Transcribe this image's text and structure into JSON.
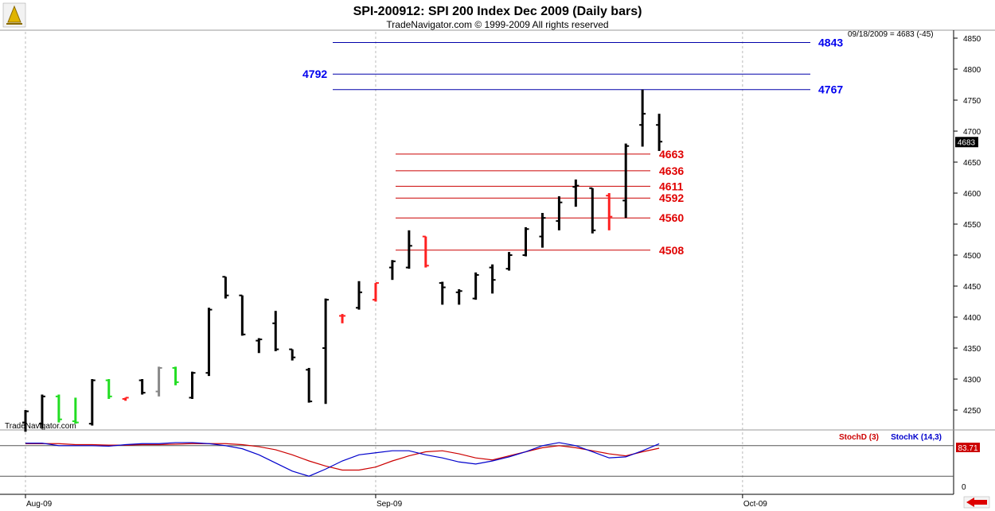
{
  "header": {
    "title": "SPI-200912:  SPI 200 Index Dec 2009  (Daily bars)",
    "subtitle": "TradeNavigator.com © 1999-2009 All rights reserved",
    "date_readout": "09/18/2009 = 4683 (-45)",
    "watermark": "TradeNavigator.com"
  },
  "price_panel": {
    "ylim": [
      4215,
      4865
    ],
    "yticks": [
      4250,
      4300,
      4350,
      4400,
      4450,
      4500,
      4550,
      4600,
      4650,
      4700,
      4750,
      4800,
      4850
    ],
    "last_price": 4683,
    "last_price_label": "4683",
    "blue_levels": [
      {
        "value": 4843,
        "label": "4843",
        "label_side": "right"
      },
      {
        "value": 4792,
        "label": "4792",
        "label_side": "left"
      },
      {
        "value": 4767,
        "label": "4767",
        "label_side": "right"
      }
    ],
    "red_levels": [
      {
        "value": 4663,
        "label": "4663"
      },
      {
        "value": 4636,
        "label": "4636"
      },
      {
        "value": 4611,
        "label": "4611"
      },
      {
        "value": 4592,
        "label": "4592"
      },
      {
        "value": 4560,
        "label": "4560"
      },
      {
        "value": 4508,
        "label": "4508"
      }
    ]
  },
  "stoch_panel": {
    "stoch_d_label": "StochD (3)",
    "stoch_k_label": "StochK (14,3)",
    "value_label": "83.71",
    "zero_label": "0",
    "ylim": [
      0,
      100
    ],
    "ref_lines": [
      20,
      80
    ]
  },
  "x_axis": {
    "labels": [
      {
        "index": 0,
        "text": "Aug-09"
      },
      {
        "index": 21,
        "text": "Sep-09"
      },
      {
        "index": 43,
        "text": "Oct-09"
      }
    ]
  },
  "colors": {
    "up": "#22dd22",
    "down": "#ff2020",
    "neutral": "#000000",
    "gray": "#888888",
    "blue_line": "#0000aa",
    "red_line": "#cc0000",
    "stoch_d": "#cc0000",
    "stoch_k": "#0000cc"
  },
  "chart_data": {
    "type": "ohlc",
    "title": "SPI-200912:  SPI 200 Index Dec 2009  (Daily bars)",
    "bars": [
      {
        "i": 0,
        "o": 4230,
        "h": 4250,
        "l": 4215,
        "c": 4248,
        "col": "neutral"
      },
      {
        "i": 1,
        "o": 4228,
        "h": 4275,
        "l": 4220,
        "c": 4272,
        "col": "neutral"
      },
      {
        "i": 2,
        "o": 4272,
        "h": 4275,
        "l": 4230,
        "c": 4235,
        "col": "up"
      },
      {
        "i": 3,
        "o": 4232,
        "h": 4270,
        "l": 4228,
        "c": 4230,
        "col": "up"
      },
      {
        "i": 4,
        "o": 4228,
        "h": 4300,
        "l": 4225,
        "c": 4298,
        "col": "neutral"
      },
      {
        "i": 5,
        "o": 4298,
        "h": 4300,
        "l": 4268,
        "c": 4272,
        "col": "up"
      },
      {
        "i": 6,
        "o": 4268,
        "h": 4270,
        "l": 4265,
        "c": 4270,
        "col": "down"
      },
      {
        "i": 7,
        "o": 4298,
        "h": 4300,
        "l": 4275,
        "c": 4278,
        "col": "neutral"
      },
      {
        "i": 8,
        "o": 4280,
        "h": 4320,
        "l": 4272,
        "c": 4318,
        "col": "gray"
      },
      {
        "i": 9,
        "o": 4318,
        "h": 4320,
        "l": 4290,
        "c": 4295,
        "col": "up"
      },
      {
        "i": 10,
        "o": 4270,
        "h": 4312,
        "l": 4268,
        "c": 4310,
        "col": "neutral"
      },
      {
        "i": 11,
        "o": 4310,
        "h": 4415,
        "l": 4305,
        "c": 4412,
        "col": "neutral"
      },
      {
        "i": 12,
        "o": 4465,
        "h": 4465,
        "l": 4430,
        "c": 4435,
        "col": "neutral"
      },
      {
        "i": 13,
        "o": 4435,
        "h": 4435,
        "l": 4370,
        "c": 4372,
        "col": "neutral"
      },
      {
        "i": 14,
        "o": 4362,
        "h": 4366,
        "l": 4342,
        "c": 4364,
        "col": "neutral"
      },
      {
        "i": 15,
        "o": 4390,
        "h": 4410,
        "l": 4345,
        "c": 4348,
        "col": "neutral"
      },
      {
        "i": 16,
        "o": 4348,
        "h": 4348,
        "l": 4330,
        "c": 4335,
        "col": "neutral"
      },
      {
        "i": 17,
        "o": 4315,
        "h": 4318,
        "l": 4262,
        "c": 4264,
        "col": "neutral"
      },
      {
        "i": 18,
        "o": 4350,
        "h": 4430,
        "l": 4260,
        "c": 4428,
        "col": "neutral"
      },
      {
        "i": 19,
        "o": 4402,
        "h": 4405,
        "l": 4390,
        "c": 4402,
        "col": "down"
      },
      {
        "i": 20,
        "o": 4415,
        "h": 4458,
        "l": 4412,
        "c": 4440,
        "col": "neutral"
      },
      {
        "i": 21,
        "o": 4428,
        "h": 4455,
        "l": 4425,
        "c": 4455,
        "col": "down"
      },
      {
        "i": 22,
        "o": 4480,
        "h": 4492,
        "l": 4460,
        "c": 4490,
        "col": "neutral"
      },
      {
        "i": 23,
        "o": 4480,
        "h": 4540,
        "l": 4478,
        "c": 4515,
        "col": "neutral"
      },
      {
        "i": 24,
        "o": 4530,
        "h": 4530,
        "l": 4480,
        "c": 4483,
        "col": "down"
      },
      {
        "i": 25,
        "o": 4455,
        "h": 4457,
        "l": 4420,
        "c": 4448,
        "col": "neutral"
      },
      {
        "i": 26,
        "o": 4440,
        "h": 4445,
        "l": 4420,
        "c": 4442,
        "col": "neutral"
      },
      {
        "i": 27,
        "o": 4430,
        "h": 4472,
        "l": 4428,
        "c": 4468,
        "col": "neutral"
      },
      {
        "i": 28,
        "o": 4480,
        "h": 4485,
        "l": 4438,
        "c": 4460,
        "col": "neutral"
      },
      {
        "i": 29,
        "o": 4478,
        "h": 4505,
        "l": 4475,
        "c": 4500,
        "col": "neutral"
      },
      {
        "i": 30,
        "o": 4500,
        "h": 4545,
        "l": 4498,
        "c": 4542,
        "col": "neutral"
      },
      {
        "i": 31,
        "o": 4530,
        "h": 4568,
        "l": 4512,
        "c": 4560,
        "col": "neutral"
      },
      {
        "i": 32,
        "o": 4555,
        "h": 4595,
        "l": 4540,
        "c": 4585,
        "col": "neutral"
      },
      {
        "i": 33,
        "o": 4610,
        "h": 4622,
        "l": 4578,
        "c": 4612,
        "col": "neutral"
      },
      {
        "i": 34,
        "o": 4608,
        "h": 4608,
        "l": 4535,
        "c": 4540,
        "col": "neutral"
      },
      {
        "i": 35,
        "o": 4596,
        "h": 4600,
        "l": 4540,
        "c": 4562,
        "col": "down"
      },
      {
        "i": 36,
        "o": 4588,
        "h": 4680,
        "l": 4560,
        "c": 4676,
        "col": "neutral"
      },
      {
        "i": 37,
        "o": 4710,
        "h": 4767,
        "l": 4675,
        "c": 4728,
        "col": "neutral"
      },
      {
        "i": 38,
        "o": 4710,
        "h": 4728,
        "l": 4668,
        "c": 4683,
        "col": "neutral"
      }
    ],
    "stoch_d": [
      84,
      84,
      84,
      82,
      82,
      81,
      81,
      82,
      82,
      83,
      84,
      84,
      84,
      82,
      78,
      72,
      62,
      50,
      40,
      32,
      32,
      38,
      50,
      60,
      68,
      70,
      64,
      56,
      52,
      60,
      68,
      76,
      80,
      76,
      70,
      64,
      60,
      68,
      75
    ],
    "stoch_k": [
      85,
      85,
      80,
      80,
      80,
      79,
      82,
      84,
      84,
      86,
      86,
      84,
      80,
      74,
      62,
      46,
      30,
      20,
      34,
      50,
      62,
      66,
      70,
      70,
      62,
      56,
      48,
      44,
      50,
      58,
      68,
      80,
      86,
      80,
      68,
      56,
      58,
      70,
      83.71
    ]
  }
}
